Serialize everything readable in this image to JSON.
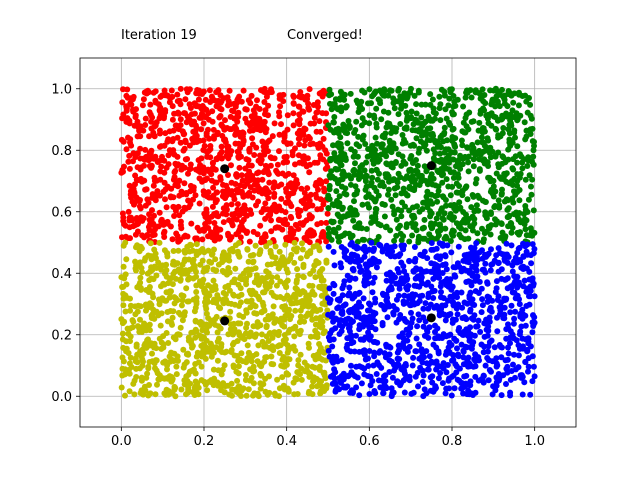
{
  "chart_data": {
    "type": "scatter",
    "annotations": {
      "iteration": "Iteration 19",
      "status": "Converged!"
    },
    "xlim": [
      -0.1,
      1.1
    ],
    "ylim": [
      -0.1,
      1.1
    ],
    "xticks": [
      0.0,
      0.2,
      0.4,
      0.6,
      0.8,
      1.0
    ],
    "yticks": [
      0.0,
      0.2,
      0.4,
      0.6,
      0.8,
      1.0
    ],
    "xtick_labels": [
      "0.0",
      "0.2",
      "0.4",
      "0.6",
      "0.8",
      "1.0"
    ],
    "ytick_labels": [
      "0.0",
      "0.2",
      "0.4",
      "0.6",
      "0.8",
      "1.0"
    ],
    "grid": true,
    "clusters": [
      {
        "color": "#ff0000",
        "x_range": [
          0.0,
          0.5
        ],
        "y_range": [
          0.5,
          1.0
        ],
        "centroid": [
          0.25,
          0.74
        ]
      },
      {
        "color": "#008000",
        "x_range": [
          0.5,
          1.0
        ],
        "y_range": [
          0.5,
          1.0
        ],
        "centroid": [
          0.75,
          0.75
        ]
      },
      {
        "color": "#bfbf00",
        "x_range": [
          0.0,
          0.5
        ],
        "y_range": [
          0.0,
          0.5
        ],
        "centroid": [
          0.25,
          0.245
        ]
      },
      {
        "color": "#0000ff",
        "x_range": [
          0.5,
          1.0
        ],
        "y_range": [
          0.0,
          0.5
        ],
        "centroid": [
          0.75,
          0.255
        ]
      }
    ],
    "centroid_color": "#000000"
  }
}
